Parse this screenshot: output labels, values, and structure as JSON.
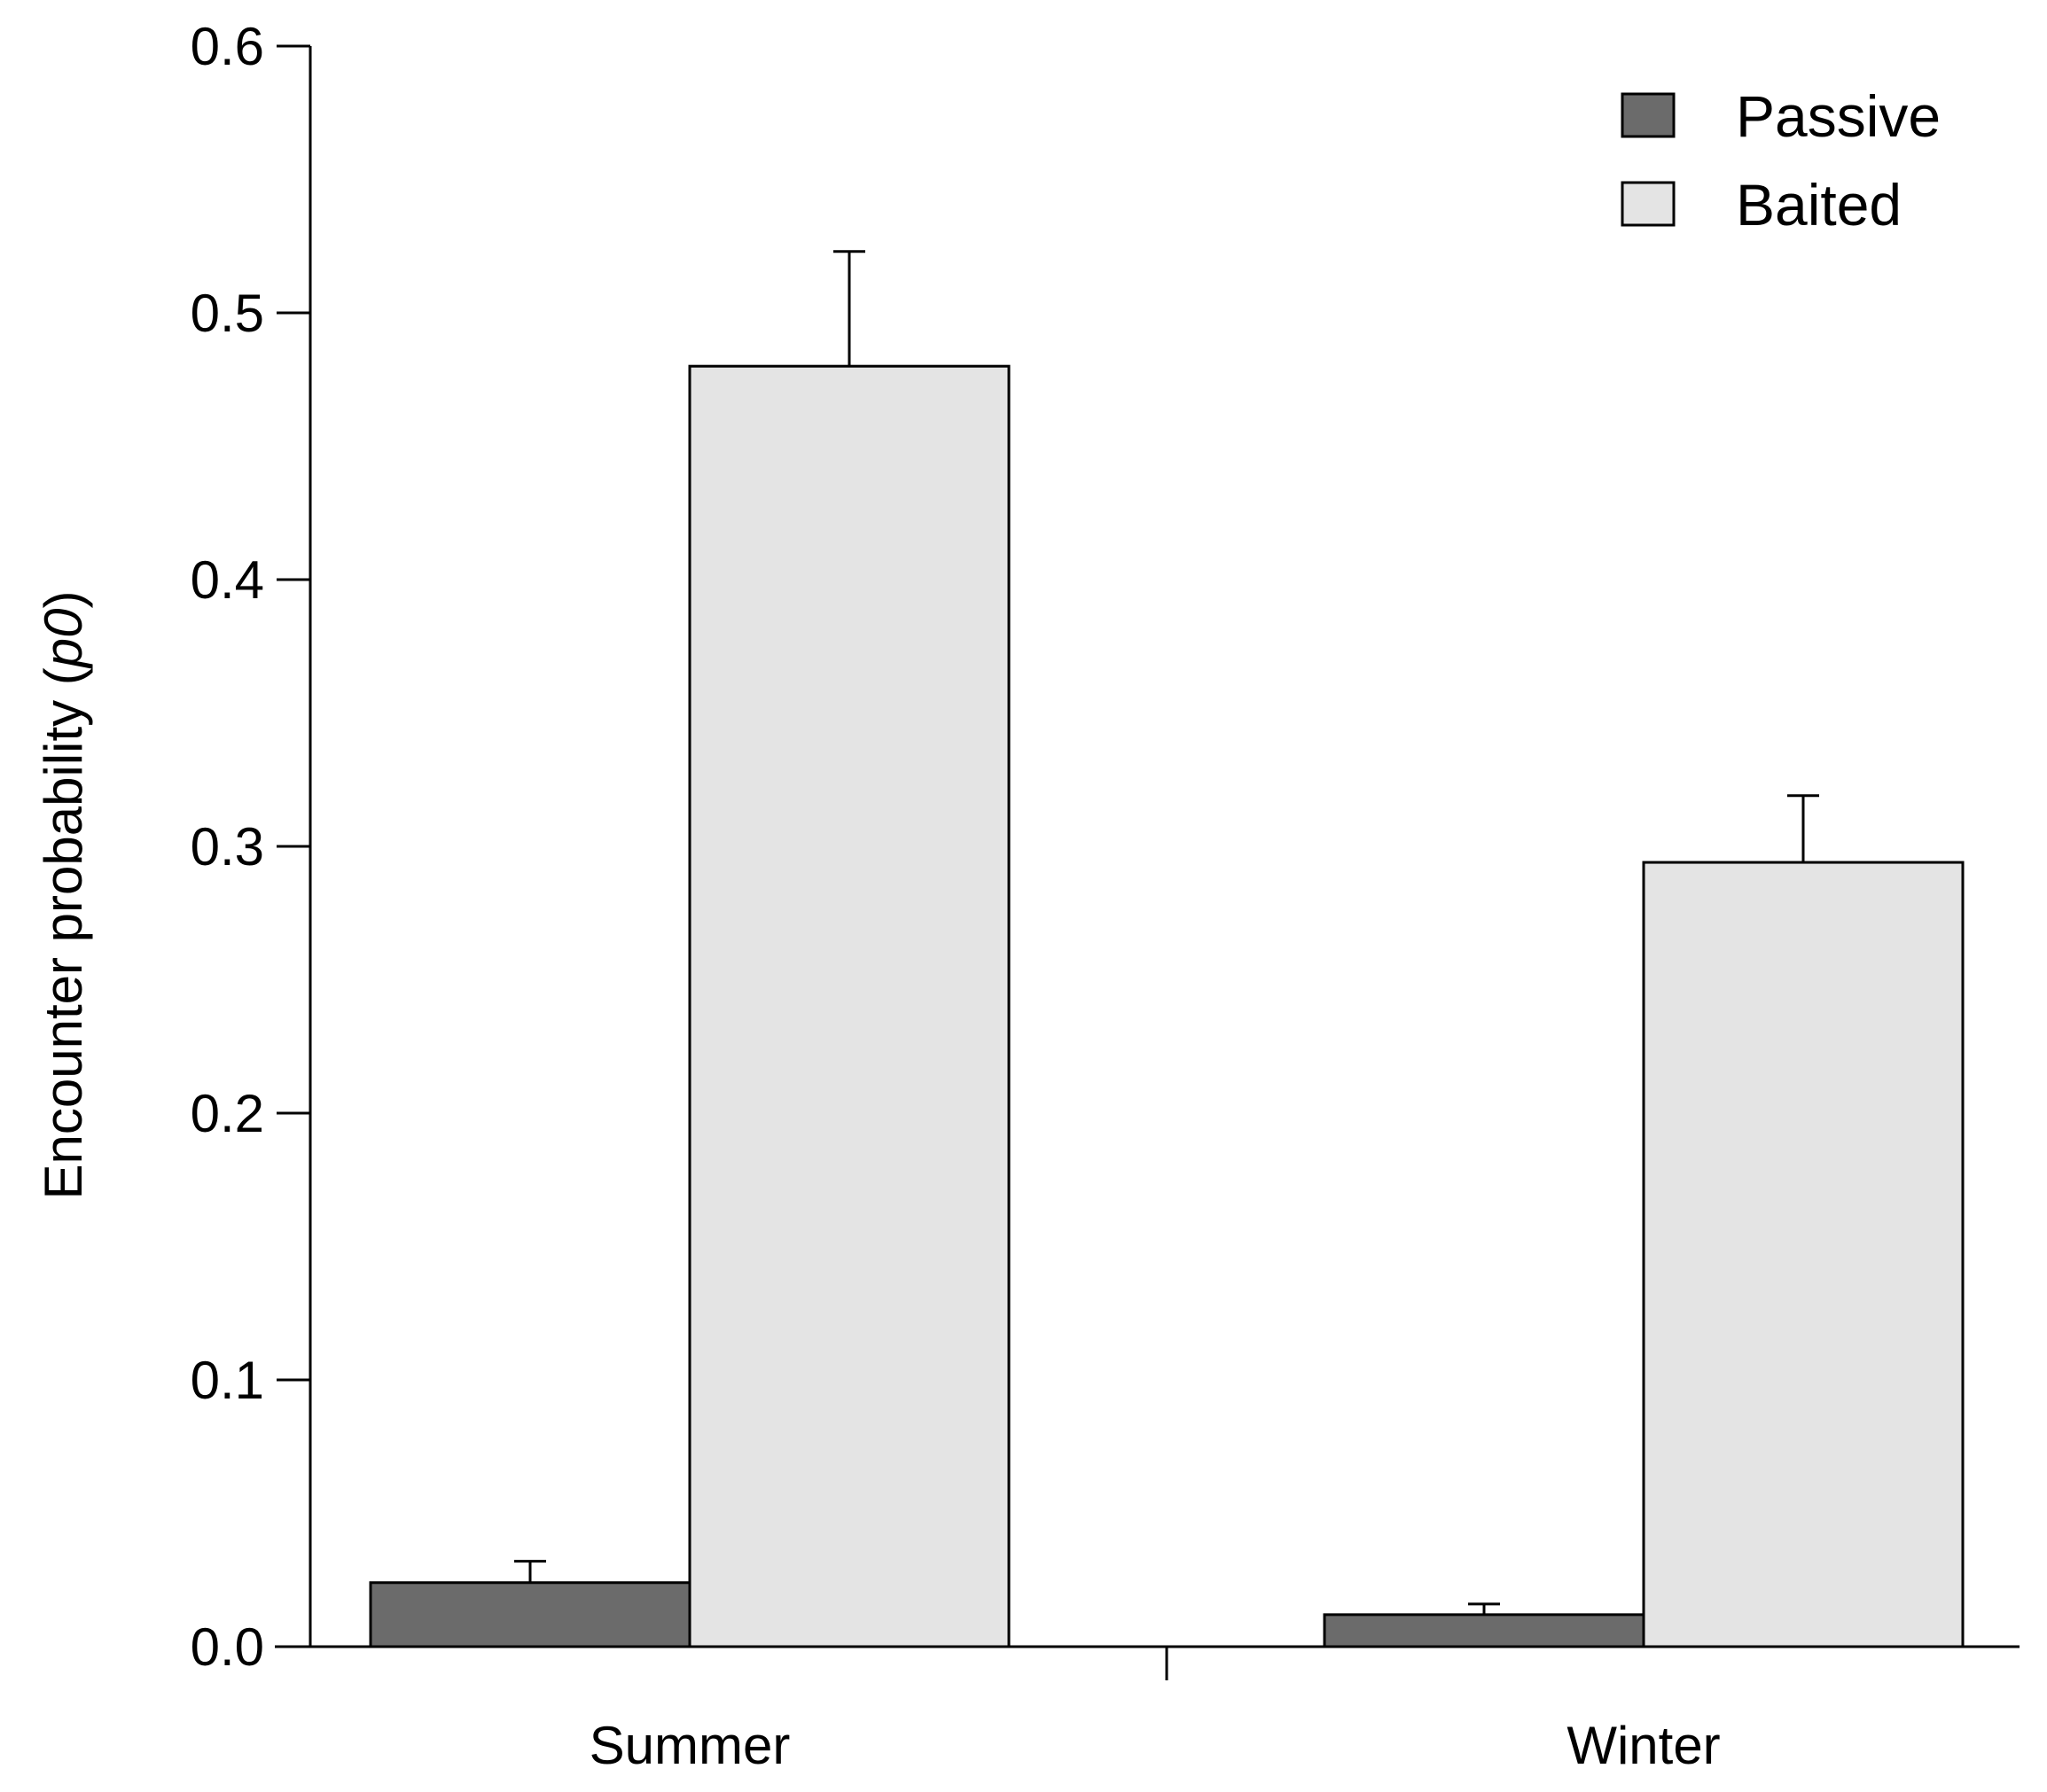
{
  "chart_data": {
    "type": "bar",
    "categories": [
      "Summer",
      "Winter"
    ],
    "series": [
      {
        "name": "Passive",
        "color": "#6b6b6b",
        "values": [
          0.024,
          0.012
        ],
        "errors_upper": [
          0.032,
          0.016
        ]
      },
      {
        "name": "Baited",
        "color": "#e4e4e4",
        "values": [
          0.48,
          0.294
        ],
        "errors_upper": [
          0.523,
          0.319
        ]
      }
    ],
    "title": "",
    "xlabel": "",
    "ylabel": "Encounter probability (p0)",
    "ylabel_parts": {
      "main": "Encounter probability (",
      "italic": "p0",
      "close": ")"
    },
    "ylim": [
      0,
      0.6
    ],
    "yticks": [
      "0.0",
      "0.1",
      "0.2",
      "0.3",
      "0.4",
      "0.5",
      "0.6"
    ],
    "ytick_values": [
      0,
      0.1,
      0.2,
      0.3,
      0.4,
      0.5,
      0.6
    ],
    "grid": false,
    "legend": "top-right",
    "error_bars": "upper"
  }
}
